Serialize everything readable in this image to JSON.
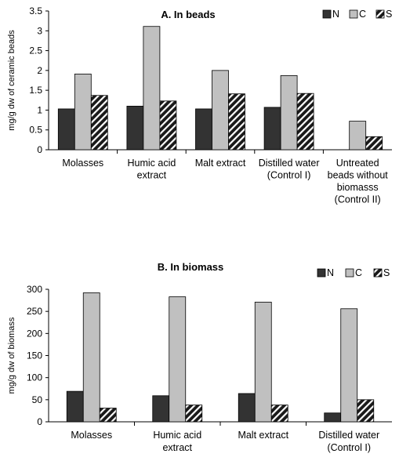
{
  "chart_data": [
    {
      "type": "bar",
      "title": "A. In beads",
      "ylabel": "mg/g dw of ceramic beads",
      "xlabel": "",
      "ylim": [
        0,
        3.5
      ],
      "yticks": [
        "0",
        "0.5",
        "1",
        "1.5",
        "2",
        "2.5",
        "3",
        "3.5"
      ],
      "categories": [
        [
          "Molasses"
        ],
        [
          "Humic acid",
          "extract"
        ],
        [
          "Malt extract"
        ],
        [
          "Distilled water",
          "(Control I)"
        ],
        [
          "Untreated",
          "beads without",
          "biomasss",
          "(Control II)"
        ]
      ],
      "series": [
        {
          "name": "N",
          "values": [
            1.03,
            1.1,
            1.03,
            1.07,
            null
          ]
        },
        {
          "name": "C",
          "values": [
            1.91,
            3.11,
            2.0,
            1.87,
            0.72
          ]
        },
        {
          "name": "S",
          "values": [
            1.37,
            1.23,
            1.41,
            1.42,
            0.33
          ]
        }
      ],
      "legend_position": "top-right",
      "grid": false
    },
    {
      "type": "bar",
      "title": "B. In biomass",
      "ylabel": "mg/g dw of biomass",
      "xlabel": "",
      "ylim": [
        0,
        300
      ],
      "yticks": [
        "0",
        "50",
        "100",
        "150",
        "200",
        "250",
        "300"
      ],
      "categories": [
        [
          "Molasses"
        ],
        [
          "Humic acid",
          "extract"
        ],
        [
          "Malt extract"
        ],
        [
          "Distilled water",
          "(Control I)"
        ]
      ],
      "series": [
        {
          "name": "N",
          "values": [
            69,
            59,
            64,
            20
          ]
        },
        {
          "name": "C",
          "values": [
            292,
            283,
            271,
            256
          ]
        },
        {
          "name": "S",
          "values": [
            31,
            38,
            38,
            50
          ]
        }
      ],
      "legend_position": "top-right",
      "grid": false
    }
  ],
  "colors": {
    "N": "#333333",
    "C": "#c0c0c0",
    "S": "#1a1a1a",
    "stroke": "#000000"
  }
}
